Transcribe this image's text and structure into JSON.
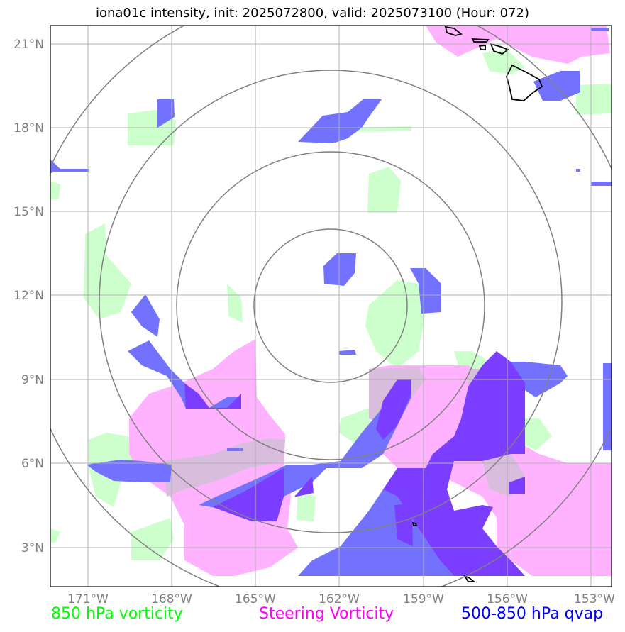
{
  "title": "iona01c intensity, init: 2025072800, valid: 2025073100 (Hour: 072)",
  "map": {
    "lon_ticks": [
      "171°W",
      "168°W",
      "165°W",
      "162°W",
      "159°W",
      "156°W",
      "153°W"
    ],
    "lat_ticks": [
      "21°N",
      "18°N",
      "15°N",
      "12°N",
      "9°N",
      "6°N",
      "3°N"
    ],
    "colors": {
      "vorticity_850": "#ccffcc",
      "steering_vorticity": "#ffb3ff",
      "qvap": "#4040ff",
      "qvap_dense": "#6a1fff",
      "rings": "#808080",
      "grid": "#b0b0b0",
      "coast": "#000000"
    }
  },
  "legend": {
    "vorticity": {
      "label": "850 hPa vorticity",
      "color": "#00ff00"
    },
    "steering": {
      "label": "Steering Vorticity",
      "color": "#ff00ff"
    },
    "qvap": {
      "label": "500-850 hPa qvap",
      "color": "#0000ff"
    }
  }
}
